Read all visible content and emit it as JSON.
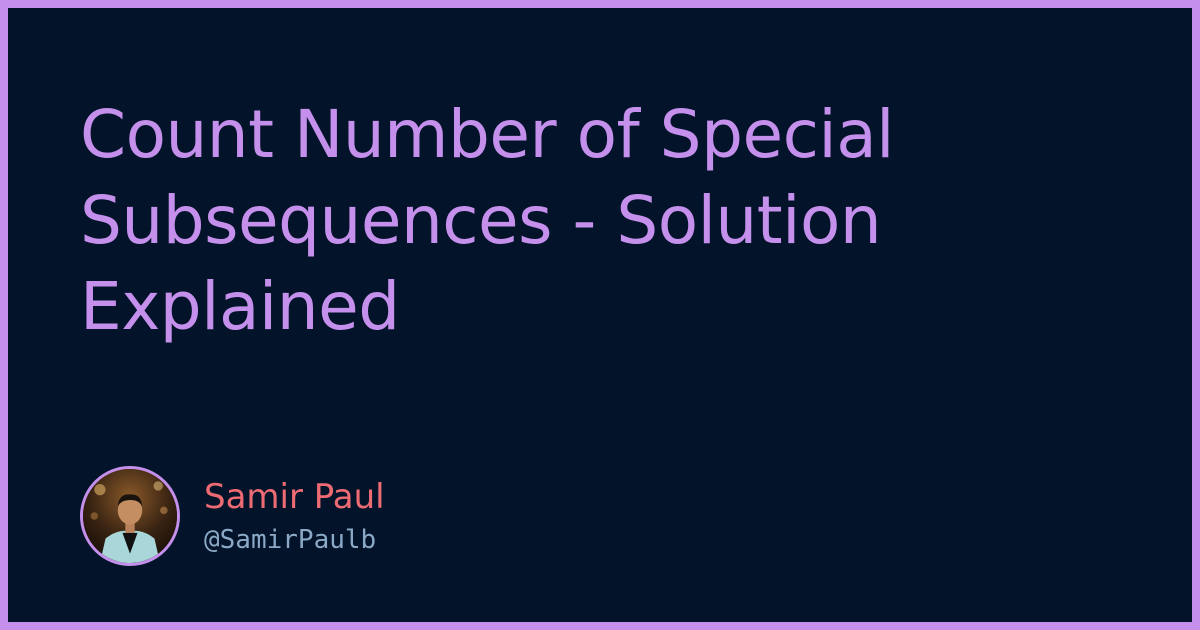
{
  "title": {
    "lines": [
      "Count Number of Special",
      "Subsequences - Solution",
      "Explained"
    ]
  },
  "author": {
    "name": "Samir Paul",
    "handle": "@SamirPaulb",
    "avatar_icon": "person-photo-avatar"
  },
  "colors": {
    "border": "#c490ec",
    "background": "#03132a",
    "title": "#c490ec",
    "author_name": "#ef6b73",
    "author_handle": "#8ba9c6"
  }
}
